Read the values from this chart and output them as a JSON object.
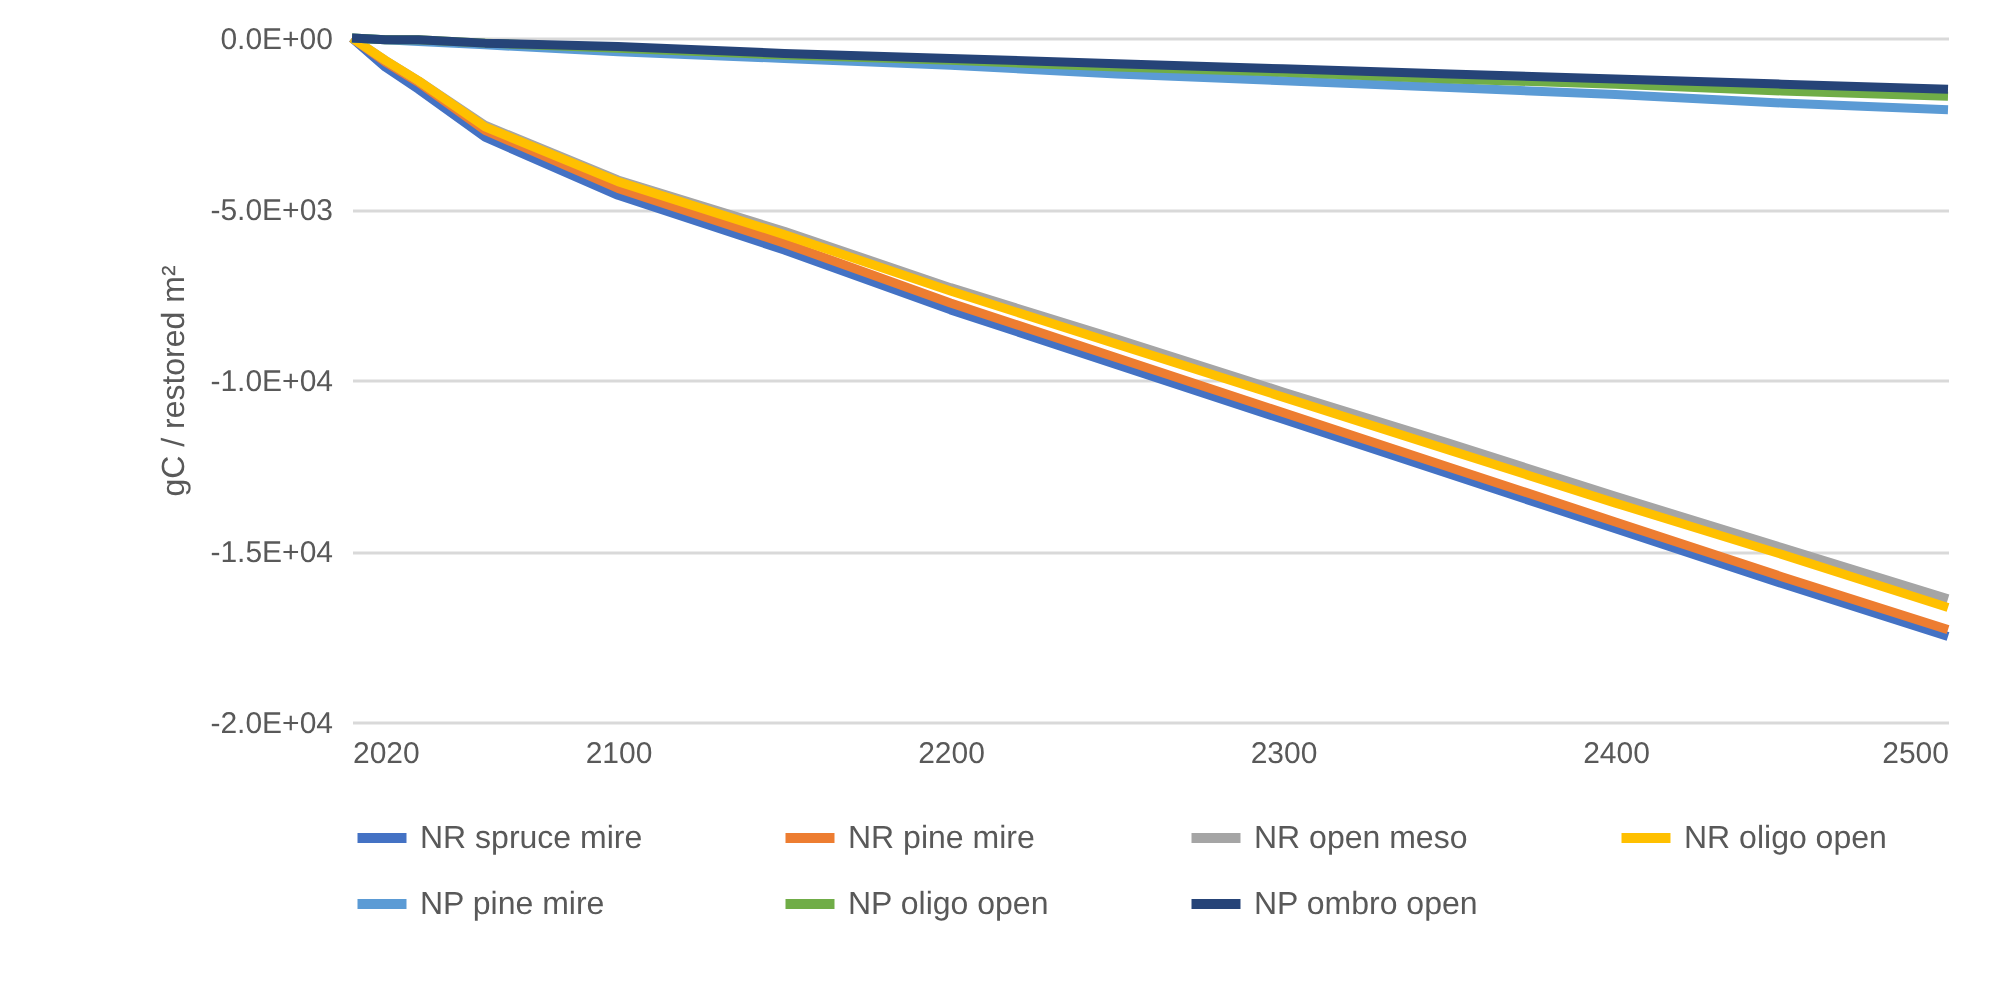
{
  "chart_data": {
    "type": "line",
    "ylabel": "gC / restored m²",
    "x": [
      2020,
      2030,
      2040,
      2060,
      2100,
      2150,
      2200,
      2250,
      2300,
      2350,
      2400,
      2450,
      2500
    ],
    "series": [
      {
        "name": "NR spruce mire",
        "color": "#4472c4",
        "values": [
          0,
          -850,
          -1500,
          -2900,
          -4600,
          -6200,
          -7950,
          -9550,
          -11150,
          -12750,
          -14350,
          -15950,
          -17500
        ]
      },
      {
        "name": "NR pine mire",
        "color": "#ed7d31",
        "values": [
          0,
          -700,
          -1300,
          -2700,
          -4400,
          -6000,
          -7750,
          -9350,
          -10950,
          -12550,
          -14150,
          -15750,
          -17300
        ]
      },
      {
        "name": "NR open meso",
        "color": "#a5a5a5",
        "values": [
          0,
          -650,
          -1250,
          -2550,
          -4150,
          -5650,
          -7300,
          -8800,
          -10350,
          -11850,
          -13400,
          -14900,
          -16400
        ]
      },
      {
        "name": "NR oligo open",
        "color": "#ffc000",
        "values": [
          0,
          -650,
          -1250,
          -2600,
          -4200,
          -5750,
          -7400,
          -8950,
          -10500,
          -12050,
          -13600,
          -15100,
          -16650
        ]
      },
      {
        "name": "NP pine mire",
        "color": "#5b9bd5",
        "values": [
          0,
          -50,
          -100,
          -200,
          -400,
          -600,
          -800,
          -1050,
          -1250,
          -1450,
          -1650,
          -1900,
          -2100
        ]
      },
      {
        "name": "NP oligo open",
        "color": "#70ad47",
        "values": [
          0,
          -50,
          -50,
          -150,
          -300,
          -500,
          -650,
          -850,
          -1000,
          -1200,
          -1350,
          -1550,
          -1700
        ]
      },
      {
        "name": "NP ombro open",
        "color": "#264478",
        "values": [
          0,
          -50,
          -50,
          -150,
          -250,
          -450,
          -600,
          -750,
          -900,
          -1050,
          -1200,
          -1350,
          -1500
        ]
      }
    ],
    "xlim": [
      2020,
      2500
    ],
    "xticks": [
      2020,
      2100,
      2200,
      2300,
      2400,
      2500
    ],
    "ylim": [
      -20000,
      0
    ],
    "yticks": [
      {
        "value": -20000,
        "label": "-2.0E+04"
      },
      {
        "value": -15000,
        "label": "-1.5E+04"
      },
      {
        "value": -10000,
        "label": "-1.0E+04"
      },
      {
        "value": -5000,
        "label": "-5.0E+03"
      },
      {
        "value": 0,
        "label": "0.0E+00"
      }
    ],
    "grid": "y",
    "legend": "bottom",
    "marker": "none",
    "line_style": "solid"
  }
}
